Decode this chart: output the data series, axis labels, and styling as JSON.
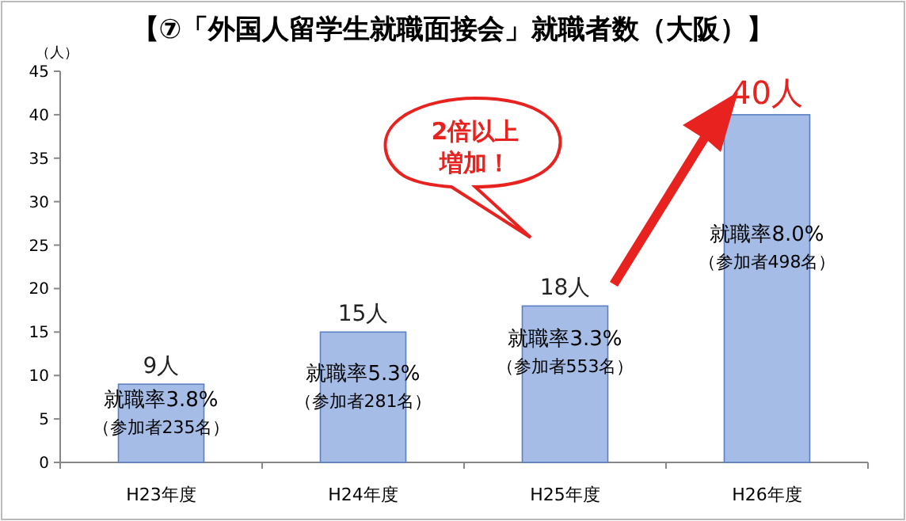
{
  "chart_data": {
    "type": "bar",
    "title": "【⑦「外国人留学生就職面接会」就職者数（大阪）】",
    "ylabel": "（人）",
    "categories": [
      "H23年度",
      "H24年度",
      "H25年度",
      "H26年度"
    ],
    "values": [
      9,
      15,
      18,
      40
    ],
    "color": "#a4bce6",
    "value_labels": [
      "9人",
      "15人",
      "18人",
      "40人"
    ],
    "ylim": [
      0,
      45
    ],
    "yticks": [
      0,
      5,
      10,
      15,
      20,
      25,
      30,
      35,
      40,
      45
    ],
    "annotations": [
      "就職率3.8%",
      "（参加者235名）",
      "就職率5.3%",
      "（参加者281名）",
      "就職率3.3%",
      "（参加者553名）",
      "就職率8.0%",
      "（参加者498名）",
      "2倍以上増加！"
    ]
  }
}
